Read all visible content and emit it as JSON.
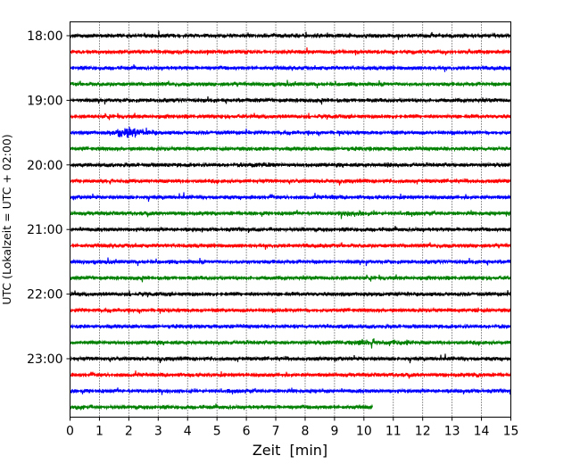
{
  "chart_data": {
    "type": "line",
    "subtype": "helicorder-seismogram",
    "xlabel": "Zeit  [min]",
    "ylabel": "UTC (Lokalzeit = UTC + 02:00)",
    "xlim": [
      0,
      15
    ],
    "x_ticks": [
      0,
      1,
      2,
      3,
      4,
      5,
      6,
      7,
      8,
      9,
      10,
      11,
      12,
      13,
      14,
      15
    ],
    "x_tick_labels": [
      "0",
      "1",
      "2",
      "3",
      "4",
      "5",
      "6",
      "7",
      "8",
      "9",
      "10",
      "11",
      "12",
      "13",
      "14",
      "15"
    ],
    "y_tick_labels": [
      "18:00",
      "19:00",
      "20:00",
      "21:00",
      "22:00",
      "23:00"
    ],
    "vertical_grid": "dotted",
    "trace_colors": [
      "#000000",
      "#ff0000",
      "#0000ff",
      "#008000"
    ],
    "traces": [
      {
        "start": "18:00",
        "end_min": 15,
        "color": "#000000"
      },
      {
        "start": "18:15",
        "end_min": 15,
        "color": "#ff0000"
      },
      {
        "start": "18:30",
        "end_min": 15,
        "color": "#0000ff"
      },
      {
        "start": "18:45",
        "end_min": 15,
        "color": "#008000"
      },
      {
        "start": "19:00",
        "end_min": 15,
        "color": "#000000"
      },
      {
        "start": "19:15",
        "end_min": 15,
        "color": "#ff0000"
      },
      {
        "start": "19:30",
        "end_min": 15,
        "color": "#0000ff",
        "events": [
          {
            "t": 2.1,
            "amp": 3.2,
            "dur": 0.9
          }
        ]
      },
      {
        "start": "19:45",
        "end_min": 15,
        "color": "#008000"
      },
      {
        "start": "20:00",
        "end_min": 15,
        "color": "#000000",
        "events": [
          {
            "t": 6.5,
            "amp": 1.6,
            "dur": 0.9
          },
          {
            "t": 10.8,
            "amp": 2.4,
            "dur": 0.15
          }
        ]
      },
      {
        "start": "20:15",
        "end_min": 15,
        "color": "#ff0000"
      },
      {
        "start": "20:30",
        "end_min": 15,
        "color": "#0000ff",
        "events": [
          {
            "t": 9.0,
            "amp": 1.3,
            "dur": 0.2
          }
        ]
      },
      {
        "start": "20:45",
        "end_min": 15,
        "color": "#008000",
        "events": [
          {
            "t": 9.7,
            "amp": 2.0,
            "dur": 0.8
          },
          {
            "t": 14.9,
            "amp": 1.6,
            "dur": 0.3
          }
        ]
      },
      {
        "start": "21:00",
        "end_min": 15,
        "color": "#000000"
      },
      {
        "start": "21:15",
        "end_min": 15,
        "color": "#ff0000"
      },
      {
        "start": "21:30",
        "end_min": 15,
        "color": "#0000ff"
      },
      {
        "start": "21:45",
        "end_min": 15,
        "color": "#008000"
      },
      {
        "start": "22:00",
        "end_min": 15,
        "color": "#000000",
        "events": [
          {
            "t": 10.0,
            "amp": 1.3,
            "dur": 0.3
          }
        ]
      },
      {
        "start": "22:15",
        "end_min": 15,
        "color": "#ff0000",
        "events": [
          {
            "t": 13.9,
            "amp": 1.4,
            "dur": 0.2
          }
        ]
      },
      {
        "start": "22:30",
        "end_min": 15,
        "color": "#0000ff",
        "events": [
          {
            "t": 8.9,
            "amp": 1.3,
            "dur": 0.8
          }
        ]
      },
      {
        "start": "22:45",
        "end_min": 15,
        "color": "#008000",
        "events": [
          {
            "t": 10.3,
            "amp": 1.9,
            "dur": 1.8
          },
          {
            "t": 11.5,
            "amp": 2.0,
            "dur": 0.15
          }
        ]
      },
      {
        "start": "23:00",
        "end_min": 15,
        "color": "#000000"
      },
      {
        "start": "23:15",
        "end_min": 15,
        "color": "#ff0000",
        "events": [
          {
            "t": 14.0,
            "amp": 1.3,
            "dur": 0.4
          }
        ]
      },
      {
        "start": "23:30",
        "end_min": 15,
        "color": "#0000ff",
        "events": [
          {
            "t": 13.3,
            "amp": 1.2,
            "dur": 0.4
          }
        ]
      },
      {
        "start": "23:45",
        "end_min": 10.3,
        "color": "#008000",
        "events": [
          {
            "t": 0.3,
            "amp": 1.6,
            "dur": 0.5
          }
        ]
      }
    ]
  }
}
